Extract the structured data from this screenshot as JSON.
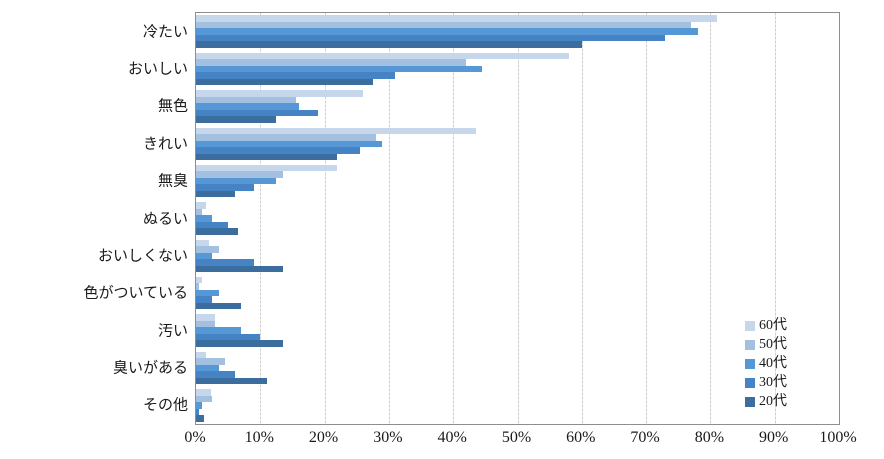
{
  "chart_data": {
    "type": "bar",
    "orientation": "horizontal",
    "title": "",
    "xlabel": "",
    "ylabel": "",
    "x_axis": {
      "min": 0,
      "max": 100,
      "tick_step": 10,
      "ticks": [
        "0%",
        "10%",
        "20%",
        "30%",
        "40%",
        "50%",
        "60%",
        "70%",
        "80%",
        "90%",
        "100%"
      ]
    },
    "grid": true,
    "legend_position": "inside-right",
    "categories": [
      "冷たい",
      "おいしい",
      "無色",
      "きれい",
      "無臭",
      "ぬるい",
      "おいしくない",
      "色がついている",
      "汚い",
      "臭いがある",
      "その他"
    ],
    "series": [
      {
        "name": "60代",
        "color": "#c6d7ec",
        "values": [
          81,
          58,
          26,
          43.5,
          22,
          1.5,
          2,
          1,
          3,
          1.5,
          2.3
        ]
      },
      {
        "name": "50代",
        "color": "#a4c0e1",
        "values": [
          77,
          42,
          15.5,
          28,
          13.5,
          1,
          3.5,
          0.5,
          3,
          4.5,
          2.5
        ]
      },
      {
        "name": "40代",
        "color": "#5697d6",
        "values": [
          78,
          44.5,
          16,
          29,
          12.5,
          2.5,
          2.5,
          3.5,
          7,
          3.5,
          1
        ]
      },
      {
        "name": "30代",
        "color": "#4583c4",
        "values": [
          73,
          31,
          19,
          25.5,
          9,
          5,
          9,
          2.5,
          10,
          6,
          0.5
        ]
      },
      {
        "name": "20代",
        "color": "#3c6d9f",
        "values": [
          60,
          27.5,
          12.5,
          22,
          6,
          6.5,
          13.5,
          7,
          13.5,
          11,
          1.3
        ]
      }
    ],
    "colors": {
      "plot_border": "#8e8e8e",
      "gridline": "#cfcfcf",
      "text": "#1a1a1a",
      "background": "#ffffff"
    }
  }
}
